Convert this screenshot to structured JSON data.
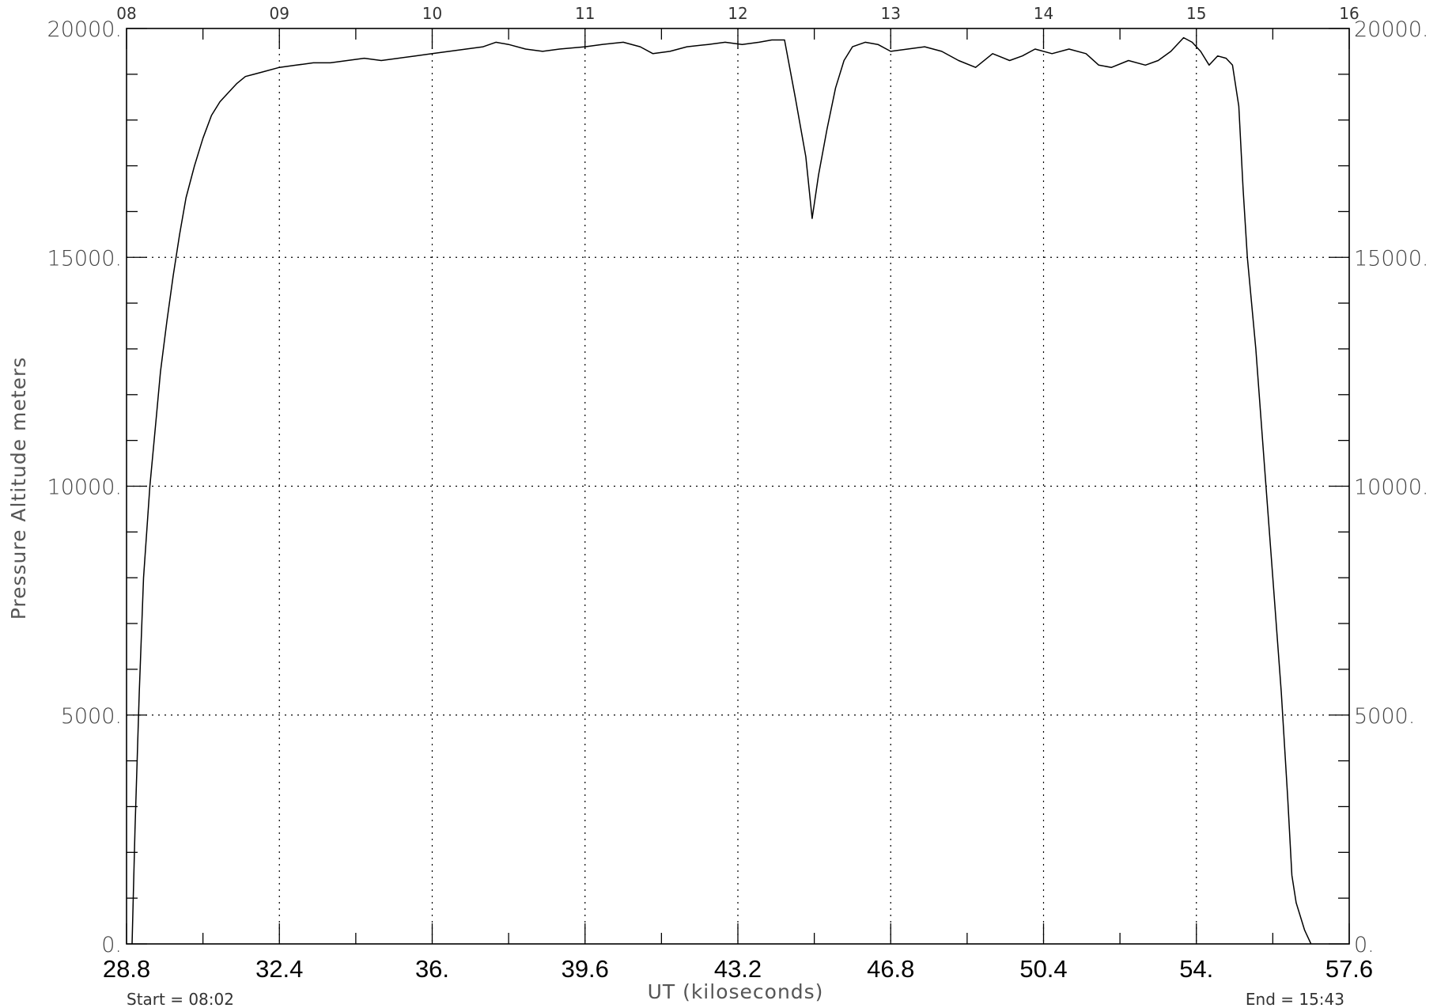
{
  "chart_data": {
    "type": "line",
    "title": "",
    "xlabel": "UT   (kiloseconds)",
    "ylabel": "Pressure Altitude   meters",
    "xlim": [
      28.8,
      57.6
    ],
    "ylim": [
      0,
      20000
    ],
    "x_ticks": [
      28.8,
      32.4,
      36.0,
      39.6,
      43.2,
      46.8,
      50.4,
      54.0,
      57.6
    ],
    "x_tick_labels": [
      "28.8",
      "32.4",
      "36.",
      "39.6",
      "43.2",
      "46.8",
      "50.4",
      "54.",
      "57.6"
    ],
    "y_ticks": [
      0,
      5000,
      10000,
      15000,
      20000
    ],
    "y_tick_labels": [
      "0.",
      "5000.",
      "10000.",
      "15000.",
      "20000."
    ],
    "y_minor_step": 1000,
    "x_minor_step": 1.8,
    "top_axis_ticks": [
      28.8,
      32.4,
      36.0,
      39.6,
      43.2,
      46.8,
      50.4,
      54.0,
      57.6
    ],
    "top_axis_labels": [
      "08",
      "09",
      "10",
      "11",
      "12",
      "13",
      "14",
      "15",
      "16"
    ],
    "grid": true,
    "start_label": "Start = 08:02",
    "end_label": "End = 15:43",
    "series": [
      {
        "values": [
          [
            28.93,
            0
          ],
          [
            29.0,
            2500
          ],
          [
            29.1,
            5500
          ],
          [
            29.2,
            8000
          ],
          [
            29.35,
            10000
          ],
          [
            29.5,
            11500
          ],
          [
            29.6,
            12500
          ],
          [
            29.75,
            13600
          ],
          [
            29.9,
            14600
          ],
          [
            30.05,
            15500
          ],
          [
            30.2,
            16300
          ],
          [
            30.4,
            17000
          ],
          [
            30.6,
            17600
          ],
          [
            30.8,
            18100
          ],
          [
            31.0,
            18400
          ],
          [
            31.2,
            18600
          ],
          [
            31.4,
            18800
          ],
          [
            31.6,
            18950
          ],
          [
            31.8,
            19000
          ],
          [
            32.0,
            19050
          ],
          [
            32.4,
            19150
          ],
          [
            32.8,
            19200
          ],
          [
            33.2,
            19250
          ],
          [
            33.6,
            19250
          ],
          [
            34.0,
            19300
          ],
          [
            34.4,
            19350
          ],
          [
            34.8,
            19300
          ],
          [
            35.2,
            19350
          ],
          [
            35.6,
            19400
          ],
          [
            36.0,
            19450
          ],
          [
            36.4,
            19500
          ],
          [
            36.8,
            19550
          ],
          [
            37.2,
            19600
          ],
          [
            37.5,
            19700
          ],
          [
            37.8,
            19650
          ],
          [
            38.2,
            19550
          ],
          [
            38.6,
            19500
          ],
          [
            39.0,
            19550
          ],
          [
            39.6,
            19600
          ],
          [
            40.0,
            19650
          ],
          [
            40.5,
            19700
          ],
          [
            40.9,
            19600
          ],
          [
            41.2,
            19450
          ],
          [
            41.6,
            19500
          ],
          [
            42.0,
            19600
          ],
          [
            42.5,
            19650
          ],
          [
            42.9,
            19700
          ],
          [
            43.3,
            19650
          ],
          [
            43.7,
            19700
          ],
          [
            44.0,
            19750
          ],
          [
            44.3,
            19750
          ],
          [
            44.55,
            18500
          ],
          [
            44.8,
            17200
          ],
          [
            44.95,
            15850
          ],
          [
            45.1,
            16800
          ],
          [
            45.3,
            17800
          ],
          [
            45.5,
            18700
          ],
          [
            45.7,
            19300
          ],
          [
            45.9,
            19600
          ],
          [
            46.2,
            19700
          ],
          [
            46.5,
            19650
          ],
          [
            46.8,
            19500
          ],
          [
            47.2,
            19550
          ],
          [
            47.6,
            19600
          ],
          [
            48.0,
            19500
          ],
          [
            48.4,
            19300
          ],
          [
            48.8,
            19150
          ],
          [
            49.2,
            19450
          ],
          [
            49.6,
            19300
          ],
          [
            49.9,
            19400
          ],
          [
            50.2,
            19550
          ],
          [
            50.6,
            19450
          ],
          [
            51.0,
            19550
          ],
          [
            51.4,
            19450
          ],
          [
            51.7,
            19200
          ],
          [
            52.0,
            19150
          ],
          [
            52.4,
            19300
          ],
          [
            52.8,
            19200
          ],
          [
            53.1,
            19300
          ],
          [
            53.4,
            19500
          ],
          [
            53.7,
            19800
          ],
          [
            53.9,
            19700
          ],
          [
            54.1,
            19500
          ],
          [
            54.3,
            19200
          ],
          [
            54.5,
            19400
          ],
          [
            54.7,
            19350
          ],
          [
            54.85,
            19200
          ],
          [
            55.0,
            18300
          ],
          [
            55.1,
            16500
          ],
          [
            55.2,
            15000
          ],
          [
            55.4,
            13000
          ],
          [
            55.6,
            10500
          ],
          [
            55.8,
            8000
          ],
          [
            56.0,
            5500
          ],
          [
            56.15,
            3200
          ],
          [
            56.25,
            1500
          ],
          [
            56.35,
            900
          ],
          [
            56.55,
            300
          ],
          [
            56.7,
            0
          ]
        ]
      }
    ]
  }
}
